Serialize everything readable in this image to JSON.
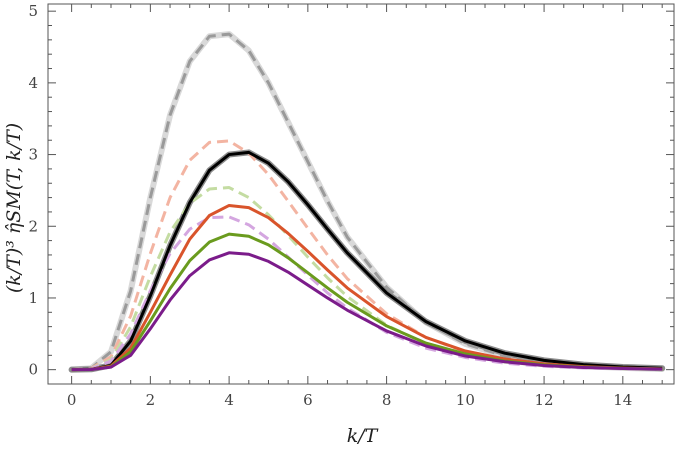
{
  "chart_data": {
    "type": "line",
    "xlabel": "k/T",
    "ylabel": "(k/T)³ η̂SM(T, k/T)",
    "xlim": [
      -0.6,
      15.3
    ],
    "ylim": [
      -0.2,
      5.1
    ],
    "x_ticks": [
      "0",
      "2",
      "4",
      "6",
      "8",
      "10",
      "12",
      "14"
    ],
    "y_ticks": [
      "0",
      "1",
      "2",
      "3",
      "4",
      "5"
    ],
    "grid": false,
    "series": [
      {
        "style": "dashed",
        "color": "#9a9a9a",
        "band": true,
        "band_color": "#d9d9d9",
        "x": [
          0,
          0.5,
          1,
          1.5,
          2,
          2.5,
          3,
          3.5,
          4,
          4.5,
          5,
          5.5,
          6,
          6.5,
          7,
          8,
          9,
          10,
          11,
          12,
          13,
          14,
          15
        ],
        "y": [
          0.0,
          0.02,
          0.25,
          1.1,
          2.4,
          3.55,
          4.3,
          4.65,
          4.68,
          4.45,
          4.0,
          3.45,
          2.9,
          2.35,
          1.85,
          1.15,
          0.66,
          0.36,
          0.19,
          0.1,
          0.05,
          0.025,
          0.01
        ]
      },
      {
        "style": "dashed",
        "color": "#f3b4a2",
        "x": [
          0,
          0.5,
          1,
          1.5,
          2,
          2.5,
          3,
          3.5,
          4,
          4.5,
          5,
          5.5,
          6,
          6.5,
          7,
          8,
          9,
          10,
          11,
          12,
          13,
          14,
          15
        ],
        "y": [
          0.0,
          0.02,
          0.18,
          0.75,
          1.62,
          2.4,
          2.92,
          3.17,
          3.19,
          3.02,
          2.72,
          2.35,
          1.97,
          1.6,
          1.27,
          0.78,
          0.45,
          0.25,
          0.13,
          0.07,
          0.035,
          0.017,
          0.008
        ]
      },
      {
        "style": "dashed",
        "color": "#c4dca2",
        "x": [
          0,
          0.5,
          1,
          1.5,
          2,
          2.5,
          3,
          3.5,
          4,
          4.5,
          5,
          5.5,
          6,
          6.5,
          7,
          8,
          9,
          10,
          11,
          12,
          13,
          14,
          15
        ],
        "y": [
          0.0,
          0.015,
          0.14,
          0.6,
          1.3,
          1.92,
          2.32,
          2.52,
          2.54,
          2.4,
          2.16,
          1.87,
          1.57,
          1.28,
          1.02,
          0.62,
          0.36,
          0.2,
          0.105,
          0.055,
          0.028,
          0.014,
          0.007
        ]
      },
      {
        "style": "dashed",
        "color": "#d4a6e0",
        "x": [
          0,
          0.5,
          1,
          1.5,
          2,
          2.5,
          3,
          3.5,
          4,
          4.5,
          5,
          5.5,
          6,
          6.5,
          7,
          8,
          9,
          10,
          11,
          12,
          13,
          14,
          15
        ],
        "y": [
          0.0,
          0.013,
          0.12,
          0.5,
          1.1,
          1.62,
          1.96,
          2.12,
          2.13,
          2.02,
          1.82,
          1.57,
          1.32,
          1.07,
          0.86,
          0.52,
          0.3,
          0.17,
          0.09,
          0.047,
          0.024,
          0.012,
          0.006
        ]
      },
      {
        "style": "solid",
        "color": "#000000",
        "band": true,
        "band_color": "#8c8c8c",
        "x": [
          0,
          0.5,
          1,
          1.5,
          2,
          2.5,
          3,
          3.5,
          4,
          4.5,
          5,
          5.5,
          6,
          6.5,
          7,
          8,
          9,
          10,
          11,
          12,
          13,
          14,
          15
        ],
        "y": [
          0.0,
          0.005,
          0.06,
          0.4,
          1.03,
          1.73,
          2.33,
          2.78,
          3.0,
          3.03,
          2.88,
          2.62,
          2.3,
          1.96,
          1.63,
          1.07,
          0.67,
          0.4,
          0.23,
          0.13,
          0.07,
          0.037,
          0.02
        ]
      },
      {
        "style": "solid",
        "color": "#d9542b",
        "x": [
          0,
          0.5,
          1,
          1.5,
          2,
          2.5,
          3,
          3.5,
          4,
          4.5,
          5,
          5.5,
          6,
          6.5,
          7,
          8,
          9,
          10,
          11,
          12,
          13,
          14,
          15
        ],
        "y": [
          0.0,
          0.004,
          0.05,
          0.3,
          0.8,
          1.32,
          1.82,
          2.15,
          2.29,
          2.26,
          2.12,
          1.9,
          1.65,
          1.39,
          1.14,
          0.74,
          0.45,
          0.26,
          0.15,
          0.08,
          0.043,
          0.022,
          0.011
        ]
      },
      {
        "style": "solid",
        "color": "#6a9b1e",
        "x": [
          0,
          0.5,
          1,
          1.5,
          2,
          2.5,
          3,
          3.5,
          4,
          4.5,
          5,
          5.5,
          6,
          6.5,
          7,
          8,
          9,
          10,
          11,
          12,
          13,
          14,
          15
        ],
        "y": [
          0.0,
          0.003,
          0.04,
          0.25,
          0.68,
          1.13,
          1.52,
          1.78,
          1.89,
          1.86,
          1.74,
          1.56,
          1.35,
          1.14,
          0.94,
          0.61,
          0.37,
          0.22,
          0.12,
          0.066,
          0.035,
          0.018,
          0.009
        ]
      },
      {
        "style": "solid",
        "color": "#7b1c8a",
        "x": [
          0,
          0.5,
          1,
          1.5,
          2,
          2.5,
          3,
          3.5,
          4,
          4.5,
          5,
          5.5,
          6,
          6.5,
          7,
          8,
          9,
          10,
          11,
          12,
          13,
          14,
          15
        ],
        "y": [
          0.0,
          0.003,
          0.035,
          0.2,
          0.57,
          0.97,
          1.31,
          1.53,
          1.63,
          1.61,
          1.51,
          1.36,
          1.18,
          1.0,
          0.83,
          0.54,
          0.33,
          0.19,
          0.11,
          0.058,
          0.031,
          0.016,
          0.008
        ]
      }
    ]
  }
}
